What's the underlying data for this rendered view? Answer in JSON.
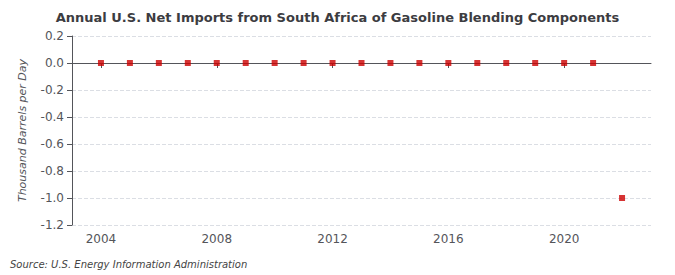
{
  "chart_data": {
    "type": "scatter",
    "title": "Annual U.S. Net Imports from South Africa of Gasoline Blending Components",
    "ylabel": "Thousand Barrels per Day",
    "source": "Source: U.S. Energy Information Administration",
    "x": [
      2004,
      2005,
      2006,
      2007,
      2008,
      2009,
      2010,
      2011,
      2012,
      2013,
      2014,
      2015,
      2016,
      2017,
      2018,
      2019,
      2020,
      2021,
      2022
    ],
    "values": [
      0,
      0,
      0,
      0,
      0,
      0,
      0,
      0,
      0,
      0,
      0,
      0,
      0,
      0,
      0,
      0,
      0,
      0,
      -1.0
    ],
    "color": "#cc0000",
    "marker": "square",
    "xlim": [
      2003,
      2023
    ],
    "xticks": [
      2004,
      2008,
      2012,
      2016,
      2020
    ],
    "ylim": [
      -1.2,
      0.2
    ],
    "yticks": [
      0.2,
      {
        "value": 0,
        "label": "0.0"
      },
      -0.2,
      -0.4,
      -0.6,
      -0.8,
      {
        "value": -1,
        "label": "-1.0"
      },
      -1.2
    ],
    "grid": true
  }
}
